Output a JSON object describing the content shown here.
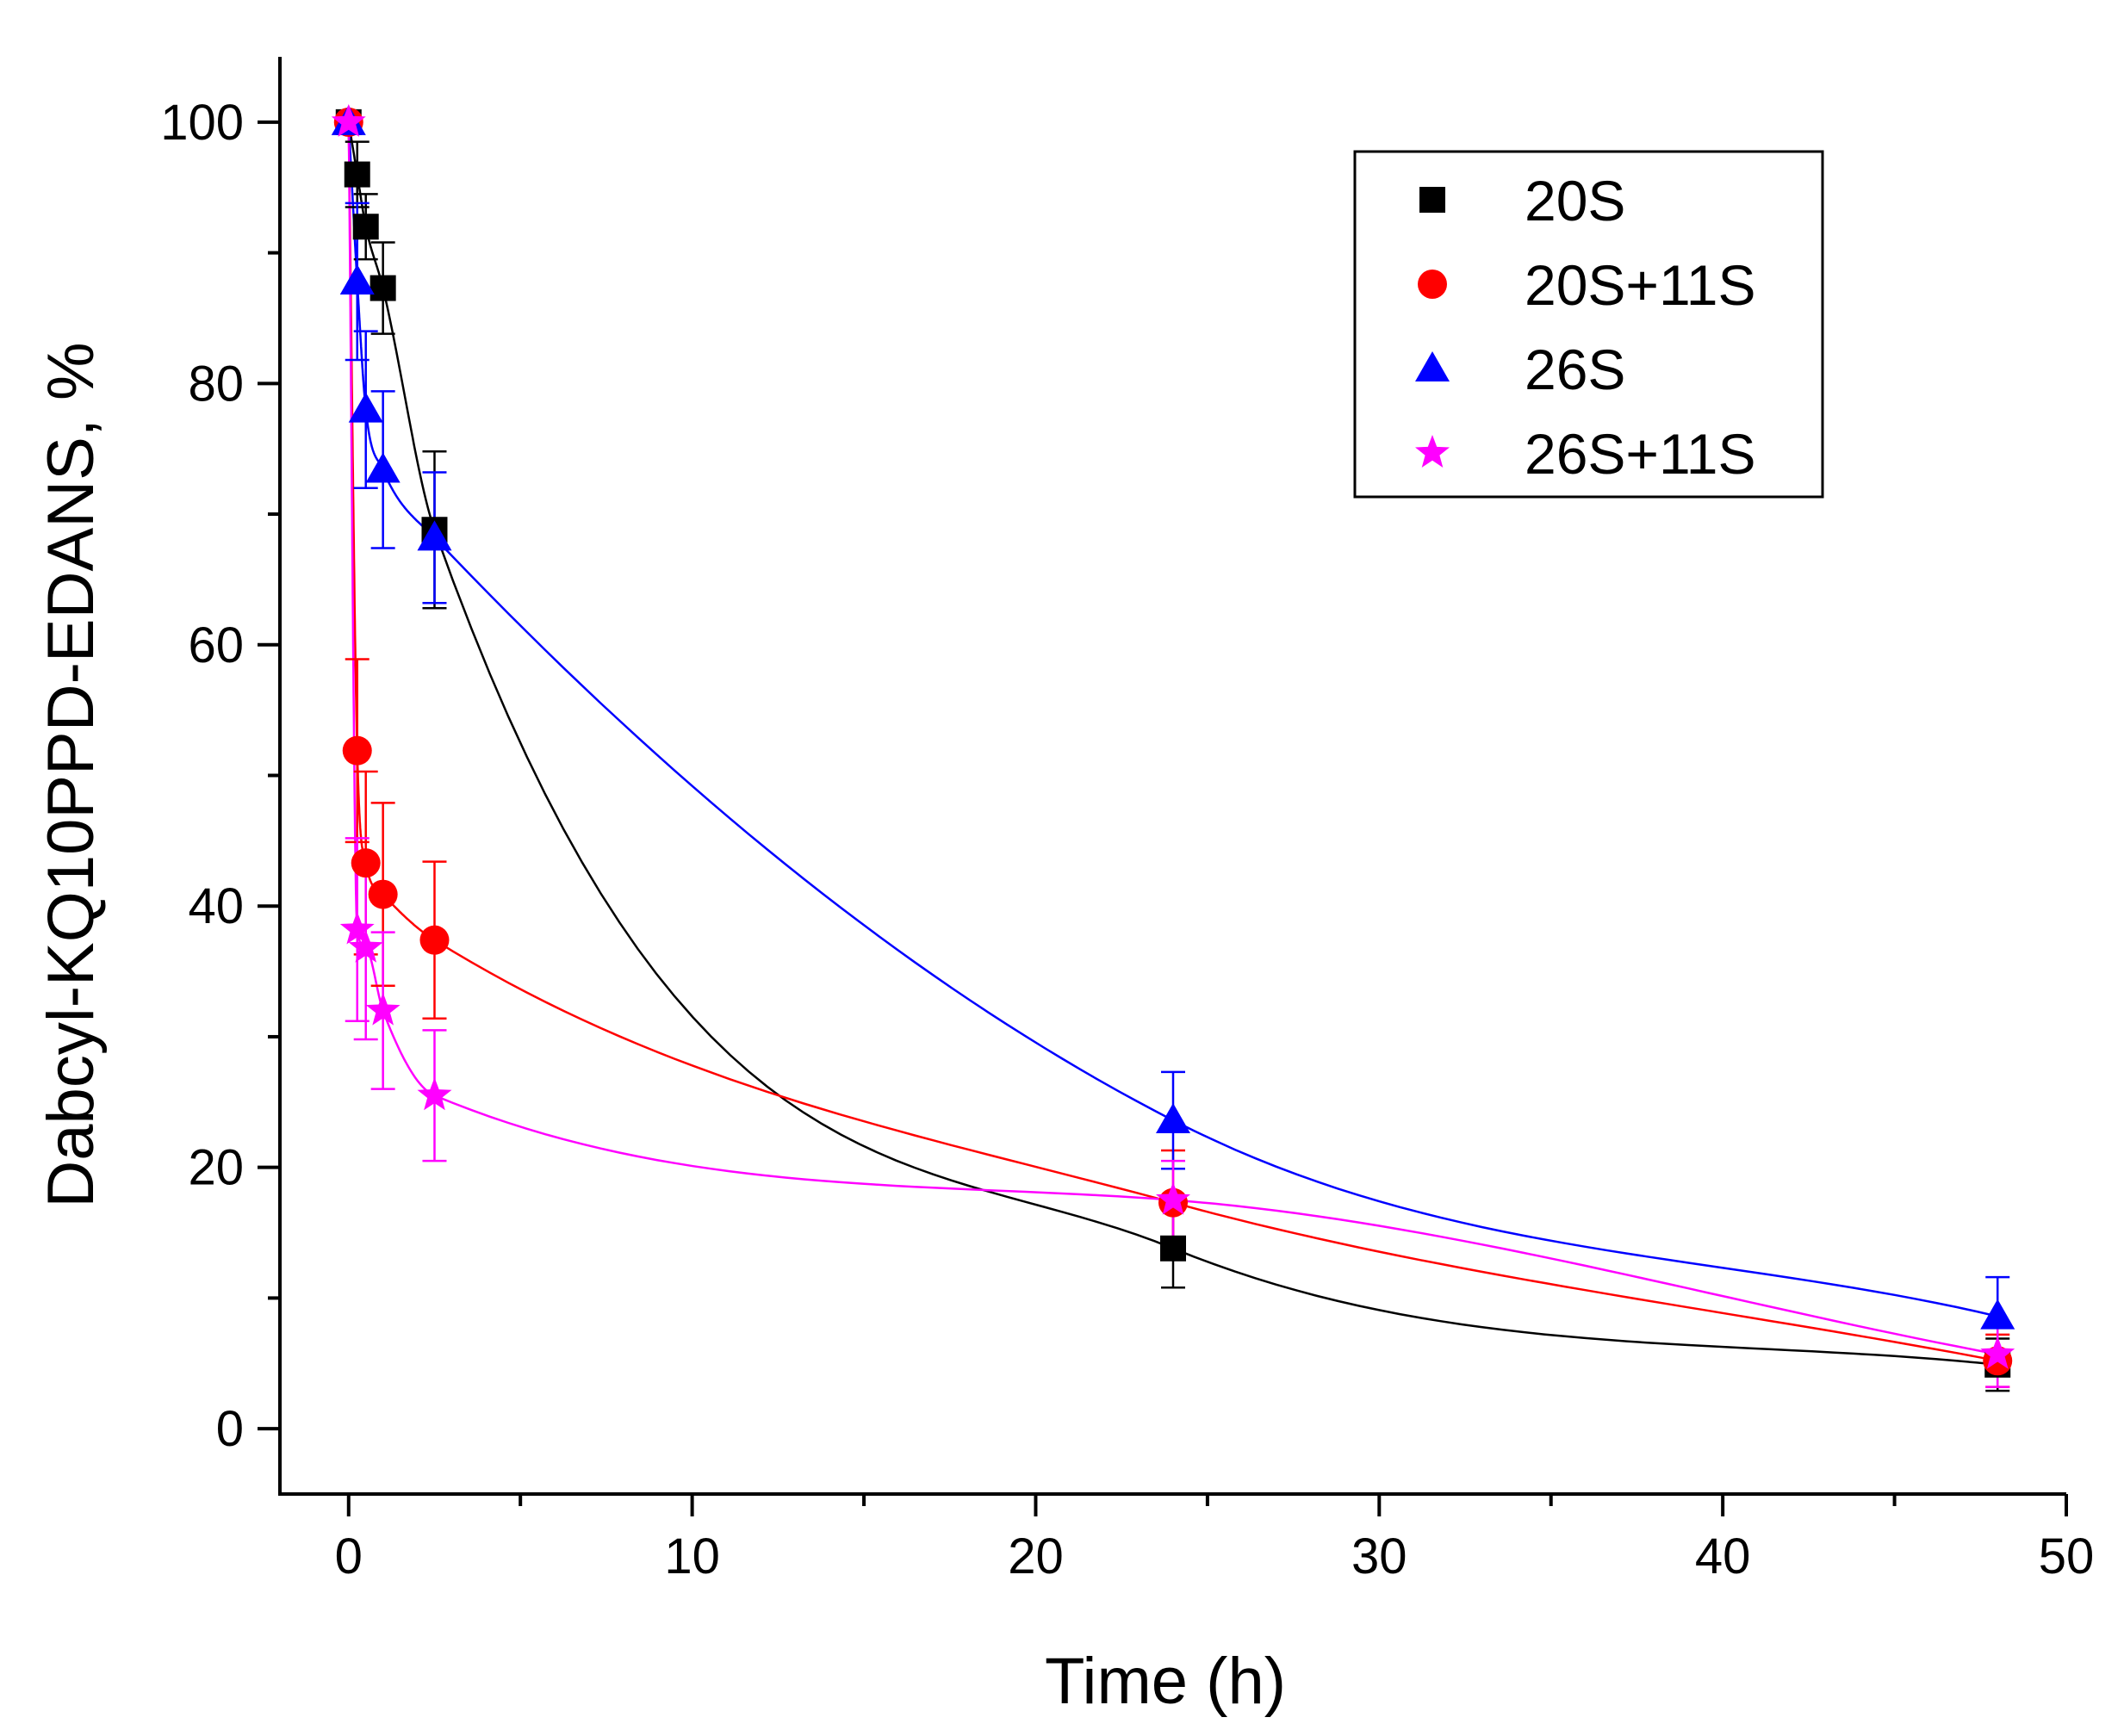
{
  "chart_data": {
    "type": "scatter",
    "title": "",
    "xlabel": "Time (h)",
    "ylabel": "Dabcyl-KQ10PPD-EDANS, %",
    "xlim": [
      -2,
      50
    ],
    "ylim": [
      -5,
      105
    ],
    "xticks": [
      0,
      10,
      20,
      30,
      40,
      50
    ],
    "yticks": [
      0,
      20,
      40,
      60,
      80,
      100
    ],
    "x_minor_step": 5,
    "y_minor_step": 10,
    "legend_position": "top-right",
    "grid": false,
    "series": [
      {
        "name": "20S",
        "color": "#000000",
        "marker": "square",
        "x": [
          0,
          0.25,
          0.5,
          1,
          2.5,
          24,
          48
        ],
        "y": [
          100,
          96,
          92,
          87.3,
          68.8,
          13.8,
          4.9
        ],
        "err": [
          0,
          2.5,
          2.5,
          3.5,
          6,
          3,
          2
        ],
        "fit": "exponential-biexp"
      },
      {
        "name": "20S+11S",
        "color": "#ff0000",
        "marker": "circle",
        "x": [
          0,
          0.25,
          0.5,
          1,
          2.5,
          24,
          48
        ],
        "y": [
          100,
          51.9,
          43.3,
          40.9,
          37.4,
          17.3,
          5.2
        ],
        "err": [
          0,
          7,
          7,
          7,
          6,
          4,
          2
        ],
        "fit": "biexp"
      },
      {
        "name": "26S",
        "color": "#0000ff",
        "marker": "triangle",
        "x": [
          0,
          0.25,
          0.5,
          1,
          2.5,
          24,
          48
        ],
        "y": [
          100,
          87.8,
          78,
          73.4,
          68.2,
          23.6,
          8.6
        ],
        "err": [
          0,
          6,
          6,
          6,
          5,
          3.7,
          3
        ],
        "fit": "biexp"
      },
      {
        "name": "26S+11S",
        "color": "#ff00ff",
        "marker": "star",
        "x": [
          0,
          0.25,
          0.5,
          1,
          2.5,
          24,
          48
        ],
        "y": [
          100,
          38.2,
          36.8,
          32,
          25.5,
          17.5,
          5.7
        ],
        "err": [
          0,
          7,
          7,
          6,
          5,
          3,
          2.5
        ],
        "fit": "biexp"
      }
    ]
  }
}
